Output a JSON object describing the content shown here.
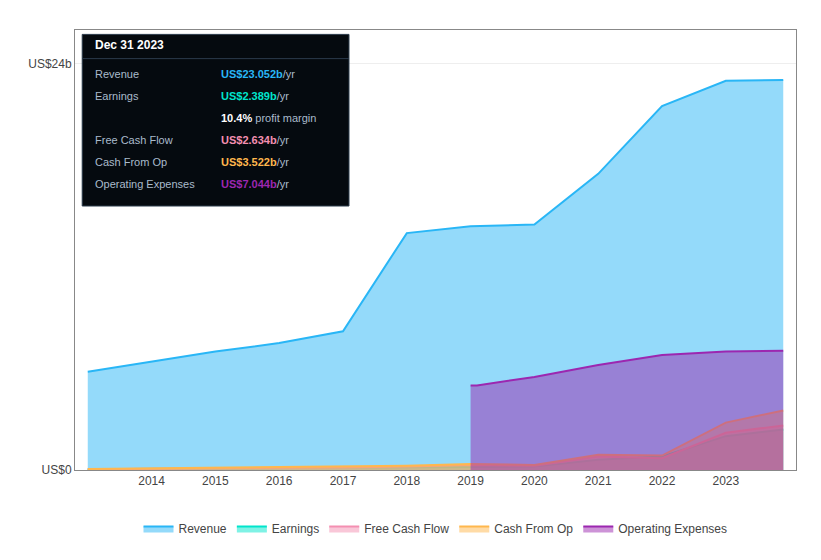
{
  "chart_data": {
    "type": "area",
    "xlim": [
      2012.8,
      2024.1
    ],
    "xticks": [
      2014,
      2015,
      2016,
      2017,
      2018,
      2019,
      2020,
      2021,
      2022,
      2023
    ],
    "ylim": [
      0,
      26
    ],
    "yticks": [
      {
        "value": 0,
        "label": "US$0"
      },
      {
        "value": 24,
        "label": "US$24b"
      }
    ],
    "grid": true,
    "legend": "bottom",
    "series": [
      {
        "name": "Revenue",
        "color": "#29b6f6",
        "x": [
          2013,
          2014,
          2015,
          2016,
          2017,
          2018,
          2019,
          2020,
          2021,
          2022,
          2023,
          2023.9
        ],
        "values": [
          5.8,
          6.4,
          7.0,
          7.5,
          8.2,
          14.0,
          14.4,
          14.5,
          17.5,
          21.5,
          23.0,
          23.05
        ]
      },
      {
        "name": "Earnings",
        "color": "#00e5cc",
        "x": [
          2013,
          2014,
          2015,
          2016,
          2017,
          2018,
          2019,
          2020,
          2021,
          2022,
          2023,
          2023.9
        ],
        "values": [
          0.05,
          0.07,
          0.08,
          0.1,
          0.12,
          0.18,
          0.2,
          0.2,
          0.6,
          0.8,
          2.0,
          2.389
        ]
      },
      {
        "name": "Free Cash Flow",
        "color": "#f48fb1",
        "x": [
          2013,
          2014,
          2015,
          2016,
          2017,
          2018,
          2019,
          2020,
          2021,
          2022,
          2023,
          2023.9
        ],
        "values": [
          0.04,
          0.06,
          0.08,
          0.12,
          0.15,
          0.2,
          0.3,
          0.25,
          0.8,
          0.7,
          2.2,
          2.634
        ]
      },
      {
        "name": "Cash From Op",
        "color": "#ffb74d",
        "x": [
          2013,
          2014,
          2015,
          2016,
          2017,
          2018,
          2019,
          2020,
          2021,
          2022,
          2023,
          2023.9
        ],
        "values": [
          0.06,
          0.09,
          0.12,
          0.15,
          0.18,
          0.25,
          0.35,
          0.3,
          0.9,
          0.85,
          2.8,
          3.522
        ]
      },
      {
        "name": "Operating Expenses",
        "color": "#9c27b0",
        "x": [
          2019,
          2019.1,
          2020,
          2021,
          2022,
          2023,
          2023.9
        ],
        "values": [
          5.0,
          5.0,
          5.5,
          6.2,
          6.8,
          7.0,
          7.044
        ]
      }
    ],
    "annotations": {
      "title": "Dec 31 2023",
      "color": "#050a0f",
      "rows": [
        {
          "label": "Revenue",
          "value": "US$23.052b",
          "unit": "/yr",
          "color": "#29b6f6"
        },
        {
          "label": "Earnings",
          "value": "US$2.389b",
          "unit": "/yr",
          "color": "#00e5cc"
        },
        {
          "value": "10.4%",
          "unit": " profit margin",
          "color": "#ffffff"
        },
        {
          "label": "Free Cash Flow",
          "value": "US$2.634b",
          "unit": "/yr",
          "color": "#f48fb1"
        },
        {
          "label": "Cash From Op",
          "value": "US$3.522b",
          "unit": "/yr",
          "color": "#ffb74d"
        },
        {
          "label": "Operating Expenses",
          "value": "US$7.044b",
          "unit": "/yr",
          "color": "#9c27b0"
        }
      ]
    }
  }
}
